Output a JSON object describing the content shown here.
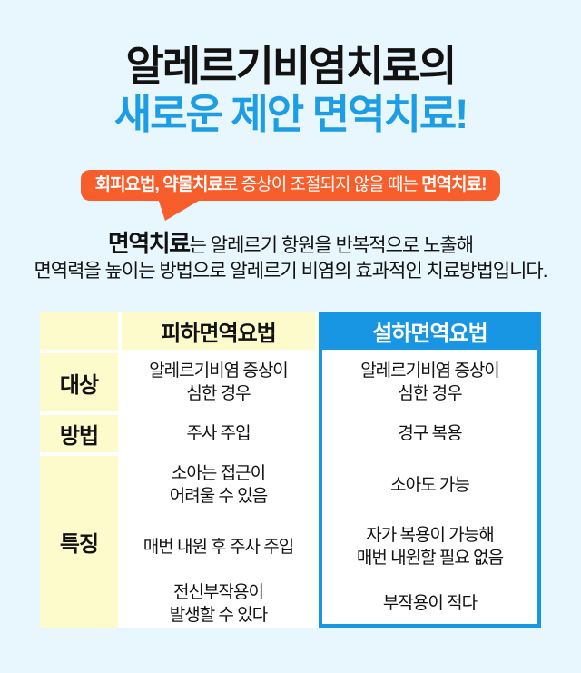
{
  "colors": {
    "page_bg": "#e8f6fd",
    "accent_blue": "#1d9de3",
    "table_blue": "#1996e3",
    "badge_orange": "#f85d2c",
    "cell_yellow": "#fdfacc"
  },
  "title": {
    "line1": "알레르기비염치료의",
    "line2": "새로운 제안 면역치료!"
  },
  "badge": {
    "bold_prefix": "회피요법, 약물치료",
    "middle": "로 증상이 조절되지 않을 때는 ",
    "bold_suffix": "면역치료!"
  },
  "intro": {
    "lead": "면역치료",
    "line1_rest": "는 알레르기 항원을 반복적으로 노출해",
    "line2": "면역력을 높이는 방법으로 알레르기 비염의 효과적인 치료방법입니다."
  },
  "table": {
    "corner_header": "",
    "col2_header": "피하면역요법",
    "col3_header": "설하면역요법",
    "labels": [
      "대상",
      "방법",
      "특징"
    ],
    "subcutaneous": [
      "알레르기비염 증상이\n심한 경우",
      "주사 주입",
      "소아는 접근이\n어려울 수 있음",
      "매번 내원 후 주사 주입",
      "전신부작용이\n발생할 수 있다"
    ],
    "sublingual": [
      "알레르기비염 증상이\n심한 경우",
      "경구 복용",
      "소아도 가능",
      "자가 복용이 가능해\n매번 내원할 필요 없음",
      "부작용이 적다"
    ]
  }
}
